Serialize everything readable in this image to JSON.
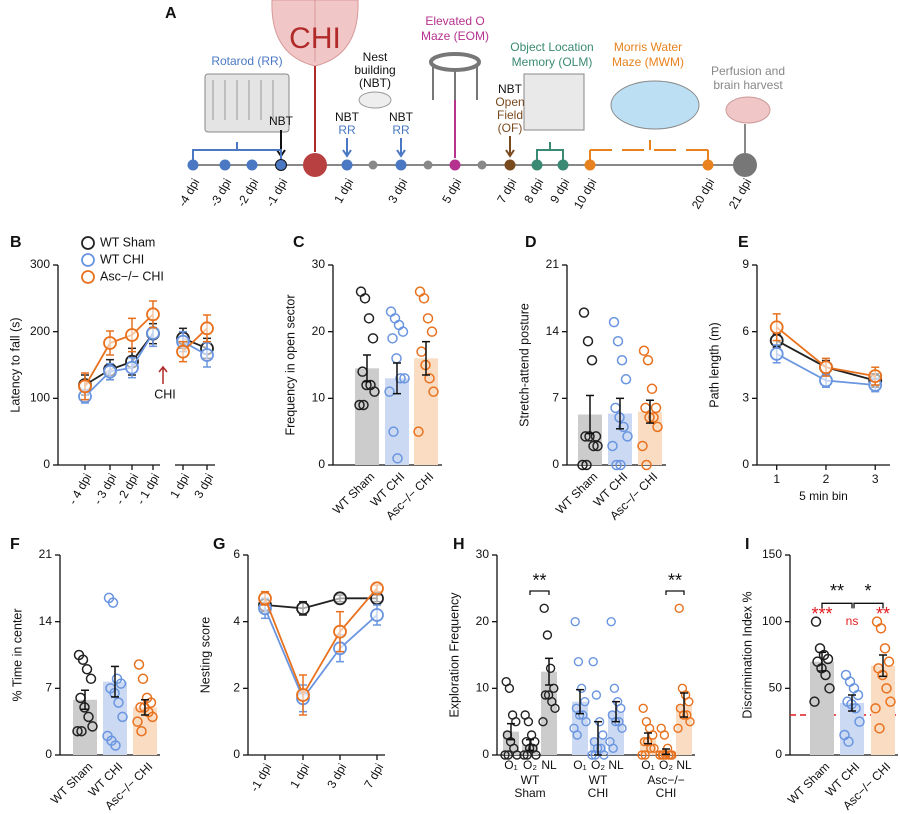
{
  "timeline": {
    "panel": "A",
    "injury": "CHI",
    "rotarod": "Rotarod (RR)",
    "nest": [
      "Nest",
      "building",
      "(NBT)"
    ],
    "eom": [
      "Elevated O",
      "Maze (EOM)"
    ],
    "olm": [
      "Object Location",
      "Memory (OLM)"
    ],
    "of": [
      "NBT",
      "Open",
      "Field",
      "(OF)"
    ],
    "mwm": [
      "Morris Water",
      "Maze (MWM)"
    ],
    "perfusion": [
      "Perfusion and",
      "brain harvest"
    ],
    "markers": [
      "NBT",
      "NBT",
      "RR",
      "NBT",
      "RR"
    ],
    "days": [
      "-4 dpi",
      "-3 dpi",
      "-2 dpi",
      "-1 dpi",
      "1 dpi",
      "3 dpi",
      "5 dpi",
      "7 dpi",
      "8 dpi",
      "9 dpi",
      "10 dpi",
      "20 dpi",
      "21 dpi"
    ]
  },
  "chart_data": [
    {
      "panel": "B",
      "type": "line",
      "ylabel": "Latency to fall (s)",
      "ylim": [
        0,
        300
      ],
      "yticks": [
        0,
        100,
        200,
        300
      ],
      "categories": [
        "- 4 dpi",
        "- 3 dpi",
        "- 2 dpi",
        "- 1 dpi",
        "1 dpi",
        "3 dpi"
      ],
      "annotation": "CHI",
      "series": [
        {
          "name": "WT Sham",
          "color": "#222222",
          "values": [
            120,
            143,
            155,
            197,
            190,
            175
          ],
          "errors": [
            15,
            15,
            20,
            15,
            15,
            15
          ]
        },
        {
          "name": "WT CHI",
          "color": "#6a95e0",
          "values": [
            103,
            140,
            146,
            198,
            185,
            165
          ],
          "errors": [
            10,
            12,
            15,
            20,
            15,
            18
          ]
        },
        {
          "name": "Asc−/− CHI",
          "color": "#e8711e",
          "values": [
            118,
            183,
            195,
            226,
            170,
            205
          ],
          "errors": [
            20,
            18,
            25,
            20,
            15,
            20
          ]
        }
      ]
    },
    {
      "panel": "C",
      "type": "bar",
      "ylabel": "Frequency in open sector",
      "ylim": [
        0,
        30
      ],
      "yticks": [
        0,
        10,
        20,
        30
      ],
      "categories": [
        "WT Sham",
        "WT CHI",
        "Asc−/− CHI"
      ],
      "bar_colors": [
        "#cccccc",
        "#cbd9f2",
        "#f9dcc2"
      ],
      "colors": [
        "#222222",
        "#6a95e0",
        "#e8711e"
      ],
      "values": [
        14.5,
        13,
        16
      ],
      "errors": [
        2,
        2.3,
        2.5
      ],
      "points": [
        [
          26,
          25,
          22,
          19,
          14,
          12,
          12,
          11,
          9,
          9
        ],
        [
          23,
          22,
          21,
          20,
          19,
          16,
          13,
          13,
          11,
          5,
          1
        ],
        [
          26,
          25,
          22,
          20,
          17,
          15,
          13,
          11,
          5
        ]
      ]
    },
    {
      "panel": "D",
      "type": "bar",
      "ylabel": "Stretch-attend posture",
      "ylim": [
        0,
        21
      ],
      "yticks": [
        0,
        7,
        14,
        21
      ],
      "categories": [
        "WT Sham",
        "WT CHI",
        "Asc−/− CHI"
      ],
      "bar_colors": [
        "#cccccc",
        "#cbd9f2",
        "#f9dcc2"
      ],
      "colors": [
        "#222222",
        "#6a95e0",
        "#e8711e"
      ],
      "values": [
        5.3,
        5.4,
        5.6
      ],
      "errors": [
        2,
        1.6,
        1.2
      ],
      "points": [
        [
          16,
          13,
          11,
          3,
          3,
          3,
          2,
          2,
          0,
          0
        ],
        [
          15,
          13,
          11,
          9,
          6,
          5,
          4,
          3,
          2,
          0,
          0
        ],
        [
          12,
          11,
          8,
          6,
          6,
          5,
          5,
          4,
          2,
          0
        ]
      ]
    },
    {
      "panel": "E",
      "type": "line",
      "ylabel": "Path length (m)",
      "xlabel": "5 min bin",
      "ylim": [
        0,
        9
      ],
      "yticks": [
        0,
        3,
        6,
        9
      ],
      "xlim": [
        0.6,
        3.3
      ],
      "xticks": [
        1,
        2,
        3
      ],
      "x": [
        1,
        2,
        3
      ],
      "series": [
        {
          "color": "#222222",
          "values": [
            5.6,
            4.4,
            3.8
          ],
          "errors": [
            0.3,
            0.3,
            0.3
          ]
        },
        {
          "color": "#6a95e0",
          "values": [
            5.0,
            3.8,
            3.6
          ],
          "errors": [
            0.4,
            0.3,
            0.3
          ]
        },
        {
          "color": "#e8711e",
          "values": [
            6.2,
            4.4,
            4.0
          ],
          "errors": [
            0.6,
            0.4,
            0.4
          ]
        }
      ]
    },
    {
      "panel": "F",
      "type": "bar",
      "ylabel": "% Time in center",
      "ylim": [
        0,
        21
      ],
      "yticks": [
        0,
        7,
        14,
        21
      ],
      "categories": [
        "WT Sham",
        "WT CHI",
        "Asc−/− CHI"
      ],
      "bar_colors": [
        "#cccccc",
        "#cbd9f2",
        "#f9dcc2"
      ],
      "colors": [
        "#222222",
        "#6a95e0",
        "#e8711e"
      ],
      "values": [
        5.8,
        7.7,
        5.0
      ],
      "errors": [
        1,
        1.6,
        0.8
      ],
      "points": [
        [
          10.5,
          10,
          9,
          8,
          6,
          5,
          4,
          3,
          2.5,
          2.5
        ],
        [
          16.5,
          16,
          8,
          7.5,
          7,
          6.5,
          5.5,
          4,
          2,
          1.5,
          1
        ],
        [
          9.5,
          8,
          6,
          5.5,
          5,
          5,
          4.5,
          4,
          3.5,
          2.5
        ]
      ]
    },
    {
      "panel": "G",
      "type": "line",
      "ylabel": "Nesting score",
      "ylim": [
        0,
        6
      ],
      "yticks": [
        0,
        2,
        4,
        6
      ],
      "categories": [
        "-1 dpi",
        "1 dpi",
        "3 dpi",
        "7 dpi"
      ],
      "series": [
        {
          "color": "#222222",
          "values": [
            4.5,
            4.4,
            4.7,
            4.7
          ],
          "errors": [
            0.2,
            0.2,
            0.1,
            0.1
          ]
        },
        {
          "color": "#6a95e0",
          "values": [
            4.4,
            1.7,
            3.2,
            4.2
          ],
          "errors": [
            0.3,
            0.4,
            0.4,
            0.3
          ]
        },
        {
          "color": "#e8711e",
          "values": [
            4.7,
            1.8,
            3.7,
            5.0
          ],
          "errors": [
            0.2,
            0.6,
            0.6,
            0.1
          ]
        }
      ]
    },
    {
      "panel": "H",
      "type": "grouped",
      "ylabel": "Exploration Frequency",
      "ylim": [
        0,
        30
      ],
      "yticks": [
        0,
        10,
        20,
        30
      ],
      "categories": [
        "O₁",
        "O₂",
        "NL"
      ],
      "groups": [
        [
          "WT",
          "Sham"
        ],
        [
          "WT",
          "CHI"
        ],
        [
          "Asc−/−",
          "CHI"
        ]
      ],
      "annotations": [
        "**",
        "**"
      ],
      "series": [
        {
          "color": "#222222",
          "bar_color": "#cccccc",
          "values": [
            3.5,
            1.5,
            12.5
          ],
          "errors": [
            1.2,
            0.8,
            2
          ],
          "points": [
            [
              11,
              10,
              6,
              5,
              3,
              2,
              1,
              0,
              0,
              0
            ],
            [
              6,
              5,
              3,
              2,
              2,
              1,
              1,
              0,
              0,
              0
            ],
            [
              22,
              18,
              13,
              10,
              9,
              9,
              8,
              7,
              5
            ]
          ]
        },
        {
          "color": "#6a95e0",
          "bar_color": "#cbd9f2",
          "values": [
            8,
            2.5,
            6.5
          ],
          "errors": [
            1.8,
            2.5,
            1.5
          ],
          "points": [
            [
              20,
              14,
              10,
              8,
              7,
              6,
              6,
              5,
              4,
              3
            ],
            [
              14,
              9,
              5,
              3,
              2,
              1,
              1,
              0,
              0,
              0
            ],
            [
              20,
              10,
              8,
              7,
              6,
              5,
              5,
              4,
              2,
              1
            ]
          ]
        },
        {
          "color": "#e8711e",
          "bar_color": "#f9dcc2",
          "values": [
            2.5,
            0.5,
            7.5
          ],
          "errors": [
            0.8,
            0.4,
            1.8
          ],
          "points": [
            [
              7,
              5,
              4,
              3,
              2,
              2,
              1,
              1,
              0,
              0
            ],
            [
              4,
              3,
              1,
              0,
              0,
              0,
              0,
              0,
              0,
              0
            ],
            [
              22,
              10,
              9,
              8,
              7,
              6,
              6,
              5,
              4
            ]
          ]
        }
      ]
    },
    {
      "panel": "I",
      "type": "bar",
      "ylabel": "Discrimination Index %",
      "ylim": [
        0,
        150
      ],
      "yticks": [
        0,
        50,
        100,
        150
      ],
      "reference_line": 30,
      "categories": [
        "WT Sham",
        "WT CHI",
        "Asc−/− CHI"
      ],
      "bar_colors": [
        "#cccccc",
        "#cbd9f2",
        "#f9dcc2"
      ],
      "colors": [
        "#222222",
        "#6a95e0",
        "#e8711e"
      ],
      "values": [
        70,
        39,
        67
      ],
      "errors": [
        7,
        6,
        8
      ],
      "points": [
        [
          100,
          80,
          75,
          72,
          70,
          65,
          60,
          50,
          40
        ],
        [
          60,
          55,
          50,
          45,
          40,
          38,
          35,
          25,
          15,
          10
        ],
        [
          100,
          95,
          80,
          70,
          65,
          60,
          50,
          40,
          35,
          20
        ]
      ],
      "annotations": [
        {
          "text": "***",
          "color": "#e41a1c"
        },
        {
          "text": "ns",
          "color": "#e41a1c"
        },
        {
          "text": "**",
          "color": "#e41a1c"
        },
        {
          "text": "**",
          "color": "#111111"
        },
        {
          "text": "*",
          "color": "#111111"
        }
      ]
    }
  ]
}
